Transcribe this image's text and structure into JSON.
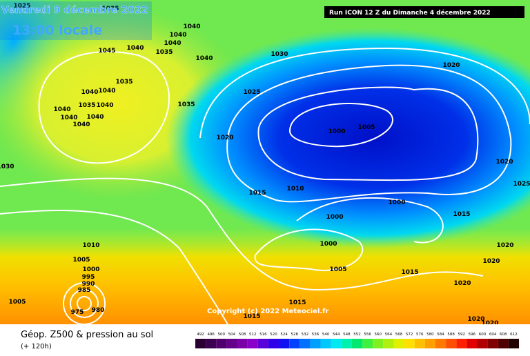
{
  "header": {
    "date": "Vendredi 9 décembre 2022",
    "time": "13:00 locale",
    "run": "Run ICON 12 Z du Dimanche 4 décembre 2022"
  },
  "copyright": "Copyright (c) 2022 Meteociel.fr",
  "footer": {
    "title": "Géop. Z500 & pression au sol",
    "lead": "(+ 120h)"
  },
  "isobar_labels": [
    "1025",
    "1035",
    "1040",
    "1040",
    "1045",
    "1040",
    "1040",
    "1035",
    "1040",
    "1030",
    "1035",
    "1040",
    "1040",
    "1035",
    "1040",
    "1040",
    "1040",
    "1040",
    "1040",
    "1025",
    "1035",
    "1030",
    "1020",
    "1000",
    "1005",
    "1020",
    "1020",
    "1025",
    "1015",
    "1010",
    "1000",
    "1000",
    "1015",
    "1000",
    "1020",
    "1020",
    "1005",
    "1015",
    "1010",
    "1005",
    "1000",
    "995",
    "990",
    "985",
    "1005",
    "1015",
    "1015",
    "1020",
    "1020",
    "1020",
    "980",
    "975"
  ],
  "scale": {
    "labels": [
      492,
      496,
      500,
      504,
      508,
      512,
      516,
      520,
      524,
      528,
      532,
      536,
      540,
      544,
      548,
      552,
      556,
      560,
      564,
      568,
      572,
      576,
      580,
      584,
      588,
      592,
      596,
      600,
      604,
      608,
      612
    ],
    "colors": [
      "#2a0033",
      "#3c0050",
      "#50006e",
      "#66008c",
      "#7a00a8",
      "#8a00c8",
      "#5a00d8",
      "#3000e8",
      "#1010f0",
      "#0040ff",
      "#0070ff",
      "#00a0ff",
      "#00c8ff",
      "#00e8f0",
      "#00f0b0",
      "#00e870",
      "#40f040",
      "#80f020",
      "#b0f010",
      "#e0f000",
      "#ffe000",
      "#ffc000",
      "#ffa000",
      "#ff7800",
      "#ff5000",
      "#ff2000",
      "#e00000",
      "#b00000",
      "#800000",
      "#500000",
      "#200000"
    ]
  }
}
